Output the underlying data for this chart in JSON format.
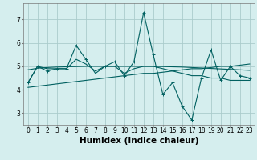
{
  "x": [
    0,
    1,
    2,
    3,
    4,
    5,
    6,
    7,
    8,
    9,
    10,
    11,
    12,
    13,
    14,
    15,
    16,
    17,
    18,
    19,
    20,
    21,
    22,
    23
  ],
  "line1": [
    4.3,
    5.0,
    4.8,
    4.9,
    4.9,
    5.9,
    5.3,
    4.7,
    5.0,
    5.2,
    4.6,
    5.2,
    7.3,
    5.5,
    3.8,
    4.3,
    3.3,
    2.7,
    4.5,
    5.7,
    4.4,
    5.0,
    4.6,
    4.5
  ],
  "line2": [
    4.3,
    5.0,
    4.9,
    4.9,
    4.9,
    5.3,
    5.1,
    4.8,
    5.0,
    5.0,
    4.7,
    4.9,
    5.0,
    5.0,
    4.9,
    4.8,
    4.7,
    4.6,
    4.6,
    4.5,
    4.5,
    4.4,
    4.4,
    4.4
  ],
  "line3": [
    4.1,
    4.15,
    4.2,
    4.25,
    4.3,
    4.35,
    4.4,
    4.45,
    4.5,
    4.55,
    4.6,
    4.65,
    4.7,
    4.7,
    4.75,
    4.8,
    4.85,
    4.9,
    4.9,
    4.95,
    5.0,
    5.0,
    5.05,
    5.1
  ],
  "line4": [
    4.85,
    4.92,
    4.95,
    4.97,
    4.98,
    4.99,
    5.0,
    5.0,
    5.0,
    5.0,
    5.0,
    5.0,
    5.0,
    5.0,
    4.99,
    4.98,
    4.97,
    4.95,
    4.93,
    4.91,
    4.89,
    4.87,
    4.85,
    4.83
  ],
  "line_color": "#006060",
  "bg_color": "#d5eeee",
  "grid_color": "#aacccc",
  "xlabel": "Humidex (Indice chaleur)",
  "ylim": [
    2.5,
    7.7
  ],
  "xlim": [
    -0.5,
    23.5
  ],
  "yticks": [
    3,
    4,
    5,
    6,
    7
  ],
  "xticks": [
    0,
    1,
    2,
    3,
    4,
    5,
    6,
    7,
    8,
    9,
    10,
    11,
    12,
    13,
    14,
    15,
    16,
    17,
    18,
    19,
    20,
    21,
    22,
    23
  ],
  "tick_fontsize": 5.5,
  "xlabel_fontsize": 7.5
}
